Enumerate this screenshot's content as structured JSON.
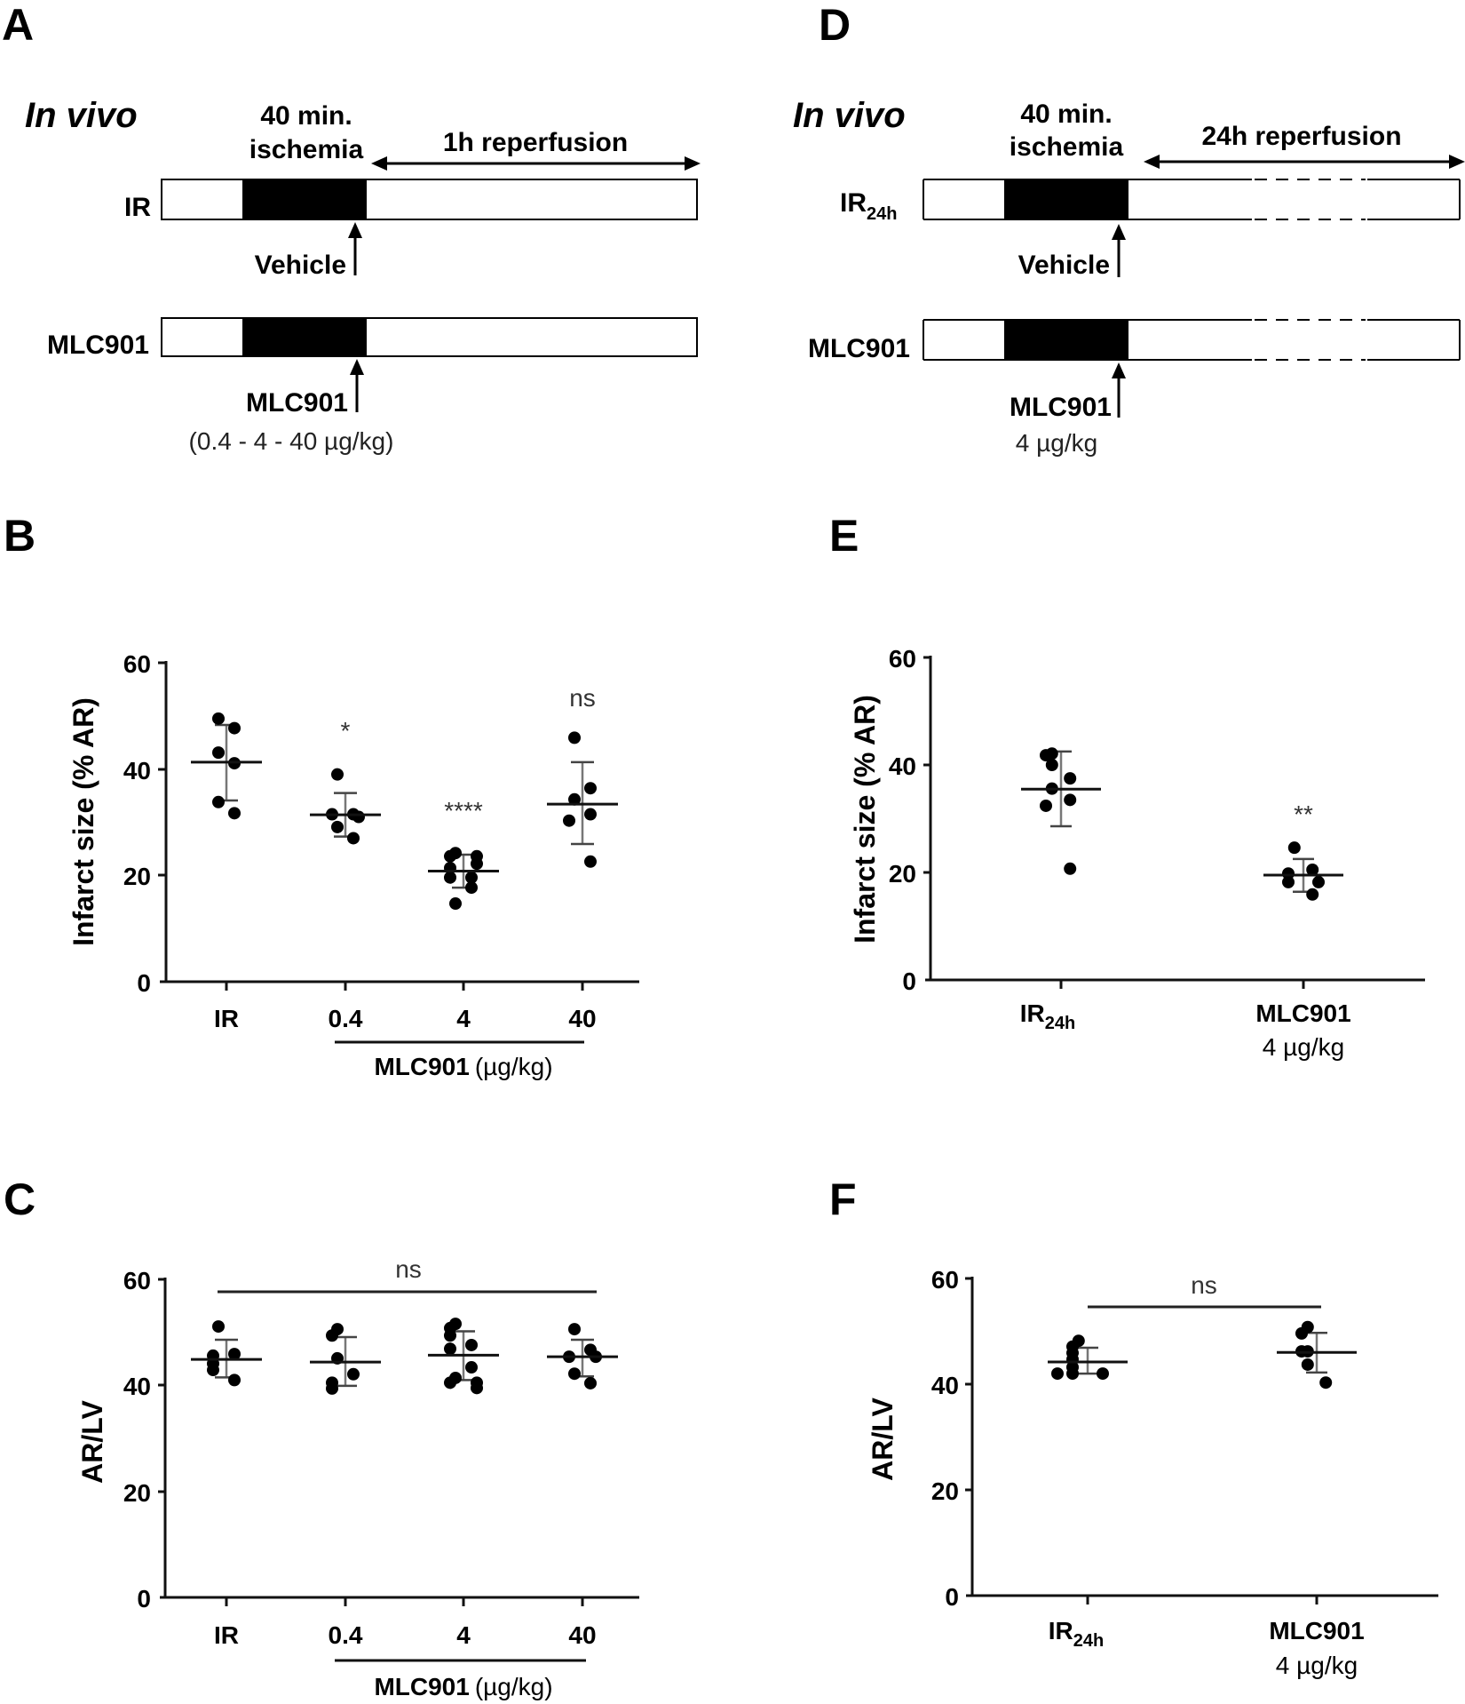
{
  "panels": {
    "A": {
      "letter": "A",
      "title": "In vivo",
      "ischemia_l1": "40 min.",
      "ischemia_l2": "ischemia",
      "reperfusion": "1h reperfusion",
      "row1": "IR",
      "row2": "MLC901",
      "arrow1": "Vehicle",
      "arrow2": "MLC901",
      "arrow2_sub": "(0.4 - 4 - 40 µg/kg)"
    },
    "D": {
      "letter": "D",
      "title": "In vivo",
      "ischemia_l1": "40 min.",
      "ischemia_l2": "ischemia",
      "reperfusion": "24h reperfusion",
      "row1_main": "IR",
      "row1_sub": "24h",
      "row2": "MLC901",
      "arrow1": "Vehicle",
      "arrow2": "MLC901",
      "arrow2_sub": "4 µg/kg"
    },
    "B": {
      "letter": "B"
    },
    "C": {
      "letter": "C"
    },
    "E": {
      "letter": "E"
    },
    "F": {
      "letter": "F"
    }
  },
  "chart_data": [
    {
      "panel": "B",
      "type": "scatter",
      "ylabel": "Infarct size (% AR)",
      "ylim": [
        0,
        60
      ],
      "yticks": [
        0,
        20,
        40,
        60
      ],
      "categories": [
        "IR",
        "0.4",
        "4",
        "40"
      ],
      "group_label": "MLC901",
      "group_unit": "(µg/kg)",
      "series": [
        {
          "name": "IR",
          "points": [
            49.5,
            47.7,
            43.1,
            41.1,
            33.8,
            31.7
          ],
          "mean": 41.3,
          "sd_high": 48.3,
          "sd_low": 34.1,
          "significance": ""
        },
        {
          "name": "0.4",
          "points": [
            39.0,
            31.5,
            31.5,
            31.0,
            29.1,
            27.0
          ],
          "mean": 31.4,
          "sd_high": 35.5,
          "sd_low": 27.3,
          "significance": "*"
        },
        {
          "name": "4",
          "points": [
            24.2,
            23.6,
            23.6,
            22.2,
            21.4,
            19.6,
            19.6,
            17.7,
            14.7
          ],
          "mean": 20.8,
          "sd_high": 23.9,
          "sd_low": 17.7,
          "significance": "****"
        },
        {
          "name": "40",
          "points": [
            45.9,
            36.4,
            34.3,
            31.5,
            30.3,
            22.6
          ],
          "mean": 33.4,
          "sd_high": 41.3,
          "sd_low": 25.9,
          "significance": "ns"
        }
      ]
    },
    {
      "panel": "C",
      "type": "scatter",
      "ylabel": "AR/LV",
      "ylim": [
        0,
        60
      ],
      "yticks": [
        0,
        20,
        40,
        60
      ],
      "categories": [
        "IR",
        "0.4",
        "4",
        "40"
      ],
      "group_label": "MLC901",
      "group_unit": "(µg/kg)",
      "overall_significance": "ns",
      "series": [
        {
          "name": "IR",
          "points": [
            51.1,
            45.9,
            45.6,
            44.1,
            42.9,
            41.0
          ],
          "mean": 44.9,
          "sd_high": 48.6,
          "sd_low": 41.5
        },
        {
          "name": "0.4",
          "points": [
            50.6,
            49.4,
            45.1,
            42.1,
            40.5,
            39.4
          ],
          "mean": 44.4,
          "sd_high": 49.1,
          "sd_low": 39.9
        },
        {
          "name": "4",
          "points": [
            51.6,
            50.8,
            49.4,
            47.6,
            46.9,
            43.4,
            41.4,
            40.5,
            40.5,
            39.5
          ],
          "mean": 45.7,
          "sd_high": 50.2,
          "sd_low": 41.0
        },
        {
          "name": "40",
          "points": [
            50.6,
            46.7,
            45.4,
            45.4,
            42.2,
            40.4
          ],
          "mean": 45.4,
          "sd_high": 48.6,
          "sd_low": 41.7
        }
      ]
    },
    {
      "panel": "E",
      "type": "scatter",
      "ylabel": "Infarct size (% AR)",
      "ylim": [
        0,
        60
      ],
      "yticks": [
        0,
        20,
        40,
        60
      ],
      "categories": [
        "IR24h",
        "MLC901 4 µg/kg"
      ],
      "series": [
        {
          "name": "IR24h",
          "points": [
            42.1,
            41.8,
            40.0,
            37.5,
            35.6,
            33.5,
            32.4,
            20.7
          ],
          "mean": 35.5,
          "sd_high": 42.5,
          "sd_low": 28.6,
          "significance": ""
        },
        {
          "name": "MLC901 4 µg/kg",
          "points": [
            24.6,
            20.5,
            19.8,
            18.2,
            18.2,
            15.9
          ],
          "mean": 19.5,
          "sd_high": 22.5,
          "sd_low": 16.4,
          "significance": "**"
        }
      ]
    },
    {
      "panel": "F",
      "type": "scatter",
      "ylabel": "AR/LV",
      "ylim": [
        0,
        60
      ],
      "yticks": [
        0,
        20,
        40,
        60
      ],
      "categories": [
        "IR24h",
        "MLC901 4 µg/kg"
      ],
      "overall_significance": "ns",
      "series": [
        {
          "name": "IR24h",
          "points": [
            48.2,
            47.1,
            45.9,
            44.7,
            43.2,
            42.0,
            42.0,
            42.0
          ],
          "mean": 44.2,
          "sd_high": 46.9,
          "sd_low": 42.0
        },
        {
          "name": "MLC901 4 µg/kg",
          "points": [
            50.8,
            49.6,
            46.2,
            46.2,
            43.7,
            40.3
          ],
          "mean": 46.0,
          "sd_high": 49.7,
          "sd_low": 42.2
        }
      ]
    }
  ],
  "axis_text": {
    "B_ylabel": "Infarct size (% AR)",
    "E_ylabel": "Infarct size (% AR)",
    "C_ylabel": "AR/LV",
    "F_ylabel": "AR/LV",
    "ticks": [
      "0",
      "20",
      "40",
      "60"
    ],
    "cat_IR": "IR",
    "cat_04": "0.4",
    "cat_4": "4",
    "cat_40": "40",
    "group_main": "MLC901",
    "group_unit": "(µg/kg)",
    "ir_main": "IR",
    "ir_sub": "24h",
    "mlc_main": "MLC901",
    "mlc_dose": "4 µg/kg",
    "sig_B_04": "*",
    "sig_B_4": "****",
    "sig_B_40": "ns",
    "sig_E": "**",
    "sig_C": "ns",
    "sig_F": "ns"
  }
}
